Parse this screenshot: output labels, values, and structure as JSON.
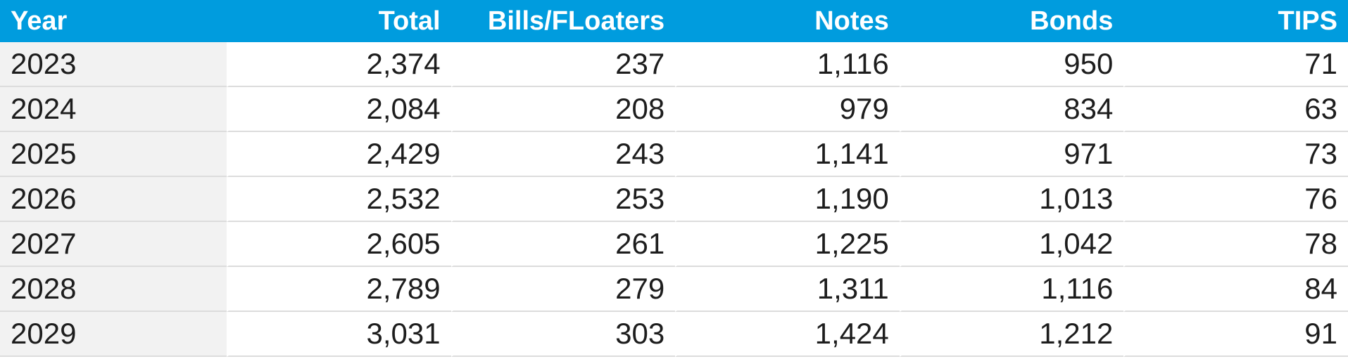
{
  "colors": {
    "header_background": "#009CDE",
    "header_text": "#FFFFFF",
    "year_column_background": "#F2F2F2",
    "row_background": "#FFFFFF",
    "row_separator": "#DCDCDC",
    "cell_text": "#1D1D1D"
  },
  "chart_data": {
    "type": "table",
    "title": "",
    "columns": [
      "Year",
      "Total",
      "Bills/FLoaters",
      "Notes",
      "Bonds",
      "TIPS"
    ],
    "rows": [
      [
        "2023",
        "2,374",
        "237",
        "1,116",
        "950",
        "71"
      ],
      [
        "2024",
        "2,084",
        "208",
        "979",
        "834",
        "63"
      ],
      [
        "2025",
        "2,429",
        "243",
        "1,141",
        "971",
        "73"
      ],
      [
        "2026",
        "2,532",
        "253",
        "1,190",
        "1,013",
        "76"
      ],
      [
        "2027",
        "2,605",
        "261",
        "1,225",
        "1,042",
        "78"
      ],
      [
        "2028",
        "2,789",
        "279",
        "1,311",
        "1,116",
        "84"
      ],
      [
        "2029",
        "3,031",
        "303",
        "1,424",
        "1,212",
        "91"
      ]
    ]
  }
}
